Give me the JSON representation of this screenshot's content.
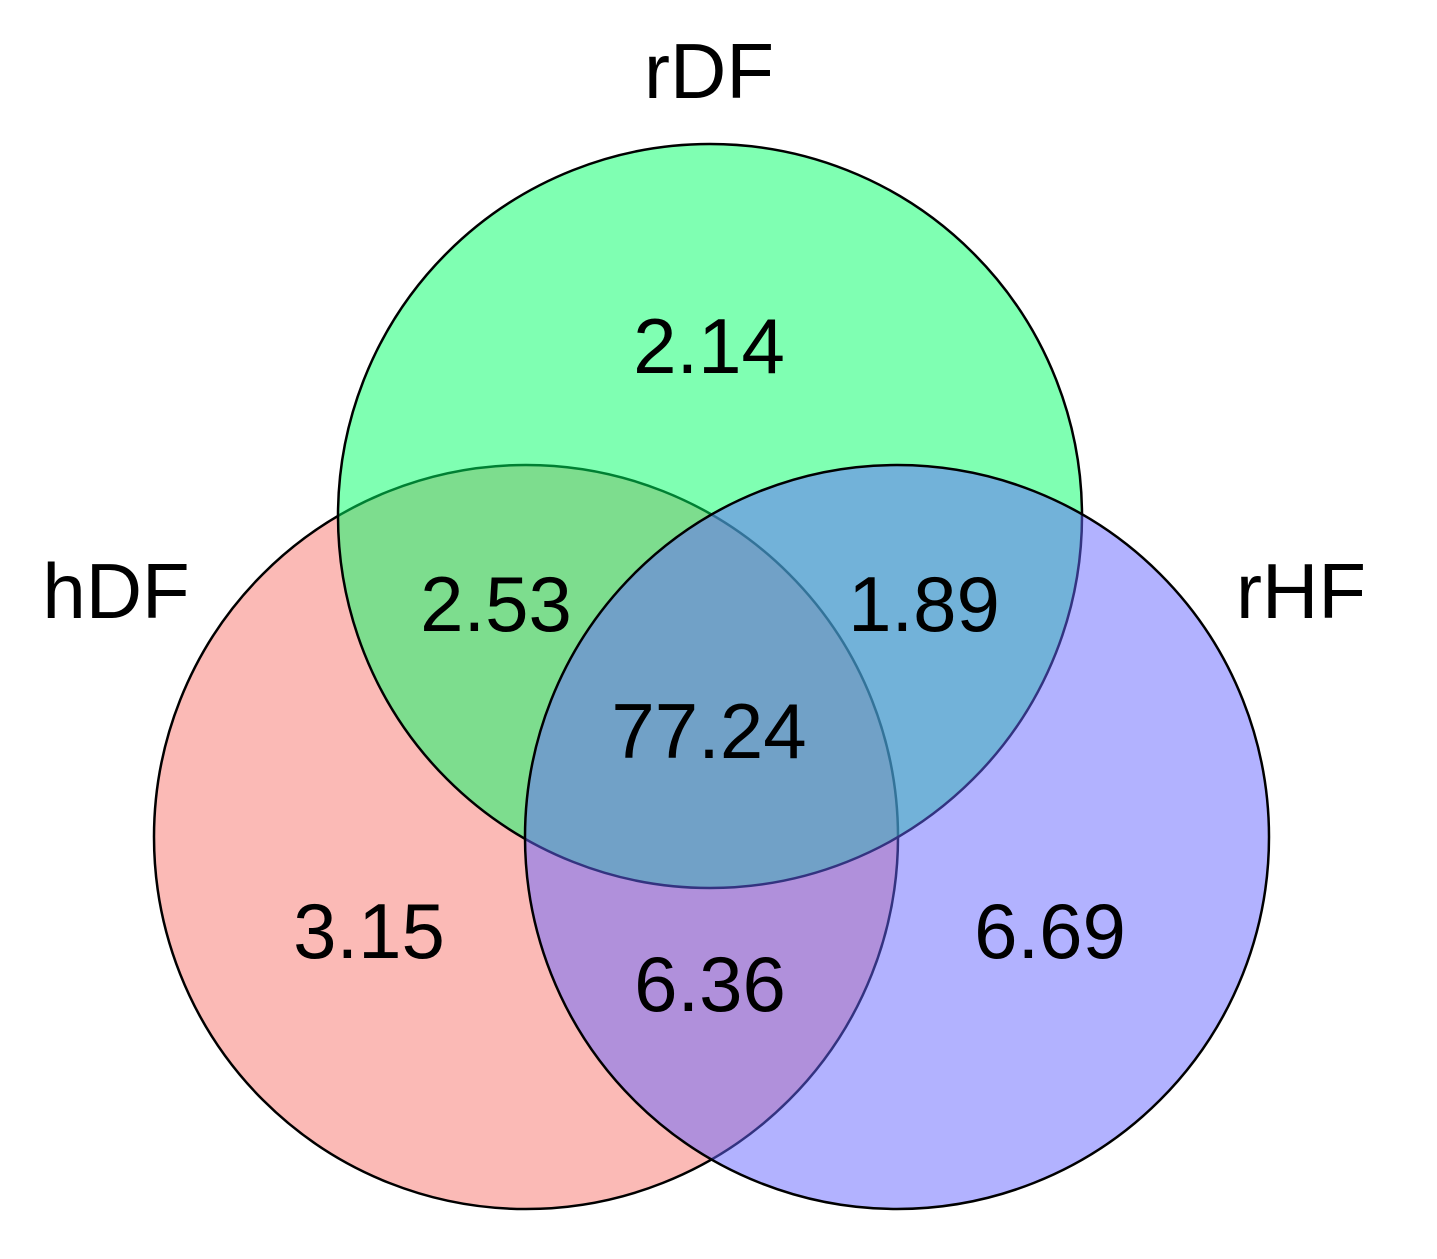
{
  "diagram": {
    "type": "venn-3",
    "sets": [
      {
        "id": "hDF",
        "label": "hDF",
        "color": "#F8766D"
      },
      {
        "id": "rDF",
        "label": "rDF",
        "color": "#00FF66"
      },
      {
        "id": "rHF",
        "label": "rHF",
        "color": "#6666FF"
      }
    ],
    "fill_opacity": 0.5,
    "regions": [
      {
        "id": "rDF-only",
        "sets": [
          "rDF"
        ],
        "value": "2.14"
      },
      {
        "id": "hDF-rDF",
        "sets": [
          "hDF",
          "rDF"
        ],
        "value": "2.53"
      },
      {
        "id": "rDF-rHF",
        "sets": [
          "rDF",
          "rHF"
        ],
        "value": "1.89"
      },
      {
        "id": "all",
        "sets": [
          "hDF",
          "rDF",
          "rHF"
        ],
        "value": "77.24"
      },
      {
        "id": "hDF-only",
        "sets": [
          "hDF"
        ],
        "value": "3.15"
      },
      {
        "id": "hDF-rHF",
        "sets": [
          "hDF",
          "rHF"
        ],
        "value": "6.36"
      },
      {
        "id": "rHF-only",
        "sets": [
          "rHF"
        ],
        "value": "6.69"
      }
    ]
  }
}
